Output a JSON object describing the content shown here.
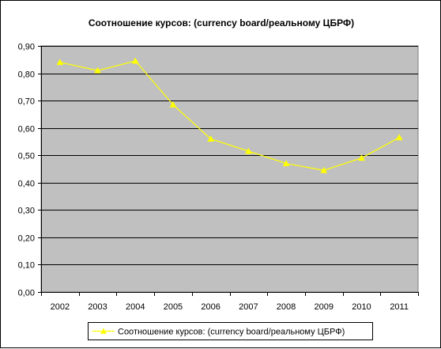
{
  "chart_data": {
    "type": "line",
    "title": "Соотношение курсов: (currency board/реальному ЦБРФ)",
    "xlabel": "",
    "ylabel": "",
    "categories": [
      "2002",
      "2003",
      "2004",
      "2005",
      "2006",
      "2007",
      "2008",
      "2009",
      "2010",
      "2011"
    ],
    "y_ticks": [
      "0,00",
      "0,10",
      "0,20",
      "0,30",
      "0,40",
      "0,50",
      "0,60",
      "0,70",
      "0,80",
      "0,90"
    ],
    "ylim": [
      0,
      0.9
    ],
    "grid": true,
    "legend_position": "bottom",
    "series": [
      {
        "name": "Соотношение курсов: (currency board/реальному ЦБРФ)",
        "color": "#ffff00",
        "marker": "triangle",
        "values": [
          0.84,
          0.81,
          0.845,
          0.685,
          0.56,
          0.515,
          0.47,
          0.445,
          0.49,
          0.565
        ]
      }
    ],
    "plot_background": "#c0c0c0",
    "gridline_color": "#000000"
  }
}
